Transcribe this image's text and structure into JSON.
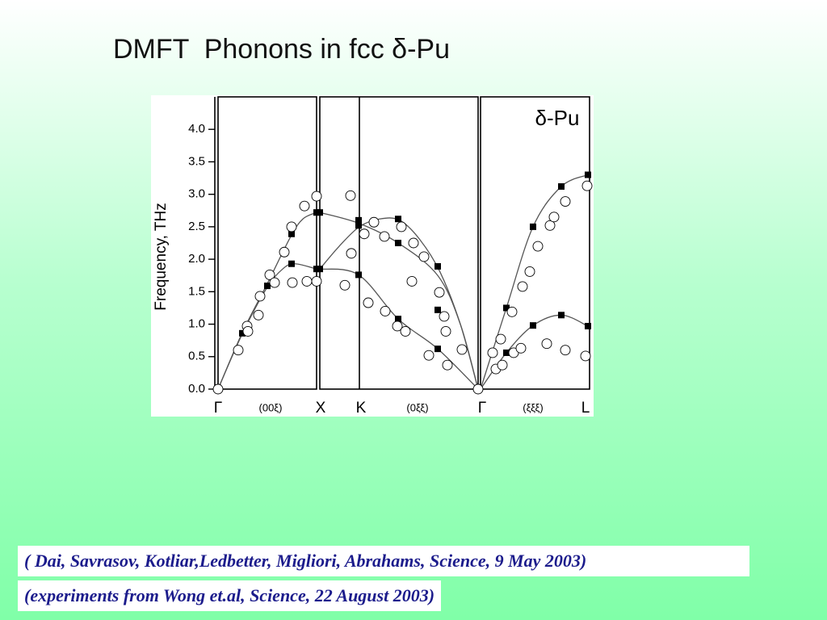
{
  "slide": {
    "title": "DMFT  Phonons in fcc δ-Pu",
    "citations": [
      "( Dai, Savrasov, Kotliar,Ledbetter, Migliori, Abrahams, Science, 9 May 2003)",
      "(experiments from Wong et.al, Science, 22 August 2003)"
    ]
  },
  "chart_data": {
    "type": "scatter",
    "y_label": "Frequency, THz",
    "annotation": "δ-Pu",
    "xlim": [
      0,
      4.6
    ],
    "ylim": [
      0,
      4.5
    ],
    "xticks": [
      {
        "value": 0,
        "label": "Γ"
      },
      {
        "value": 0.65,
        "label": "(00ξ)"
      },
      {
        "value": 1.27,
        "label": "X"
      },
      {
        "value": 1.77,
        "label": "K"
      },
      {
        "value": 2.47,
        "label": "(0ξξ)"
      },
      {
        "value": 3.27,
        "label": "Γ"
      },
      {
        "value": 3.9,
        "label": "(ξξξ)"
      },
      {
        "value": 4.55,
        "label": "L"
      }
    ],
    "yticks": [
      {
        "value": 0,
        "label": "0.0"
      },
      {
        "value": 0.5,
        "label": "0.5"
      },
      {
        "value": 1,
        "label": "1.0"
      },
      {
        "value": 1.5,
        "label": "1.5"
      },
      {
        "value": 2,
        "label": "2.0"
      },
      {
        "value": 2.5,
        "label": "2.5"
      },
      {
        "value": 3,
        "label": "3.0"
      },
      {
        "value": 3.5,
        "label": "3.5"
      },
      {
        "value": 4,
        "label": "4.0"
      }
    ],
    "series": [
      {
        "marker": "line",
        "color": "#555555",
        "x": [
          0,
          0.3,
          0.6,
          0.9,
          1.05,
          1.22
        ],
        "values": [
          0,
          0.87,
          1.6,
          2.35,
          2.62,
          2.72
        ]
      },
      {
        "marker": "line",
        "color": "#555555",
        "x": [
          0,
          0.3,
          0.6,
          0.8,
          0.95,
          1.22
        ],
        "values": [
          0,
          0.85,
          1.55,
          1.85,
          1.93,
          1.85
        ]
      },
      {
        "marker": "line",
        "color": "#555555",
        "x": [
          1.26,
          1.5,
          1.75,
          2.0,
          2.25,
          2.5,
          2.75,
          3.0,
          3.22
        ],
        "values": [
          1.85,
          2.2,
          2.5,
          2.62,
          2.6,
          2.3,
          1.8,
          1.0,
          0
        ]
      },
      {
        "marker": "line",
        "color": "#555555",
        "x": [
          1.26,
          1.75,
          2.23,
          2.72,
          3.0,
          3.22
        ],
        "values": [
          2.72,
          2.55,
          2.25,
          1.75,
          1.0,
          0
        ]
      },
      {
        "marker": "line",
        "color": "#555555",
        "x": [
          1.26,
          1.74,
          2.23,
          2.72,
          3.22
        ],
        "values": [
          1.85,
          1.76,
          1.08,
          0.62,
          0
        ]
      },
      {
        "marker": "line",
        "color": "#555555",
        "x": [
          3.25,
          3.57,
          3.9,
          4.25,
          4.58
        ],
        "values": [
          0,
          1.25,
          2.5,
          3.12,
          3.3
        ]
      },
      {
        "marker": "line",
        "color": "#555555",
        "x": [
          3.25,
          3.57,
          3.9,
          4.25,
          4.58
        ],
        "values": [
          0,
          0.56,
          0.98,
          1.14,
          0.97
        ]
      },
      {
        "marker": "square",
        "color": "#000000",
        "x": [
          0,
          0.3,
          0.61,
          0.91,
          0.91,
          1.22,
          1.26,
          1.22,
          1.26,
          1.74,
          1.74,
          1.74,
          2.23,
          2.23,
          2.23,
          2.72,
          2.72,
          2.72,
          3.57,
          3.57,
          3.9,
          3.9,
          4.25,
          4.25,
          4.58,
          4.58
        ],
        "values": [
          0,
          0.86,
          1.59,
          2.39,
          1.93,
          2.72,
          2.72,
          1.85,
          1.85,
          2.6,
          2.52,
          1.76,
          2.62,
          2.25,
          1.08,
          1.89,
          1.22,
          0.62,
          1.25,
          0.56,
          2.5,
          0.98,
          3.12,
          1.14,
          3.3,
          0.97
        ]
      },
      {
        "marker": "circle",
        "color": "#000000",
        "x": [
          0,
          0.25,
          0.36,
          0.37,
          0.5,
          0.52,
          0.64,
          0.7,
          0.82,
          0.91,
          0.92,
          1.07,
          1.1,
          1.22,
          1.22,
          1.57,
          1.64,
          1.65,
          1.81,
          1.86,
          1.93,
          2.06,
          2.07,
          2.22,
          2.27,
          2.32,
          2.4,
          2.42,
          2.55,
          2.61,
          2.74,
          2.8,
          2.82,
          2.84,
          3.02,
          3.22,
          3.4,
          3.44,
          3.5,
          3.52,
          3.64,
          3.66,
          3.75,
          3.77,
          3.86,
          3.96,
          4.11,
          4.16,
          4.07,
          4.3,
          4.3,
          4.57,
          4.55
        ],
        "values": [
          0,
          0.6,
          0.97,
          0.89,
          1.14,
          1.43,
          1.76,
          1.64,
          2.11,
          2.5,
          1.64,
          2.82,
          1.66,
          2.97,
          1.66,
          1.6,
          2.98,
          2.09,
          2.39,
          1.33,
          2.57,
          2.35,
          1.2,
          0.97,
          2.5,
          0.89,
          1.66,
          2.25,
          2.04,
          0.52,
          1.49,
          1.12,
          0.89,
          0.37,
          0.61,
          0,
          0.56,
          0.31,
          0.77,
          0.37,
          1.19,
          0.56,
          0.63,
          1.58,
          1.81,
          2.2,
          2.52,
          2.65,
          0.7,
          2.89,
          0.6,
          3.13,
          0.51
        ]
      }
    ]
  }
}
